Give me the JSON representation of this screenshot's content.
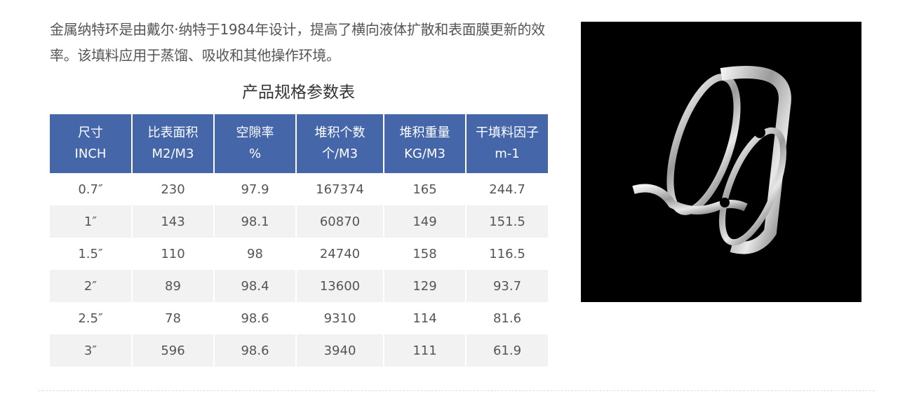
{
  "intro": "金属纳特环是由戴尔·纳特于1984年设计，提高了横向液体扩散和表面膜更新的效率。该填料应用于蒸馏、吸收和其他操作环境。",
  "table_title": "产品规格参数表",
  "header_color": "#4566a8",
  "columns": [
    {
      "line1": "尺寸",
      "line2": "INCH"
    },
    {
      "line1": "比表面积",
      "line2": "M2/M3"
    },
    {
      "line1": "空隙率",
      "line2": "%"
    },
    {
      "line1": "堆积个数",
      "line2": "个/M3"
    },
    {
      "line1": "堆积重量",
      "line2": "KG/M3"
    },
    {
      "line1": "干填料因子",
      "line2": "m-1"
    }
  ],
  "rows": [
    [
      "0.7″",
      "230",
      "97.9",
      "167374",
      "165",
      "244.7"
    ],
    [
      "1″",
      "143",
      "98.1",
      "60870",
      "149",
      "151.5"
    ],
    [
      "1.5″",
      "110",
      "98",
      "24740",
      "158",
      "116.5"
    ],
    [
      "2″",
      "89",
      "98.4",
      "13600",
      "129",
      "93.7"
    ],
    [
      "2.5″",
      "78",
      "98.6",
      "9310",
      "114",
      "81.6"
    ],
    [
      "3″",
      "596",
      "98.6",
      "3940",
      "111",
      "61.9"
    ]
  ]
}
